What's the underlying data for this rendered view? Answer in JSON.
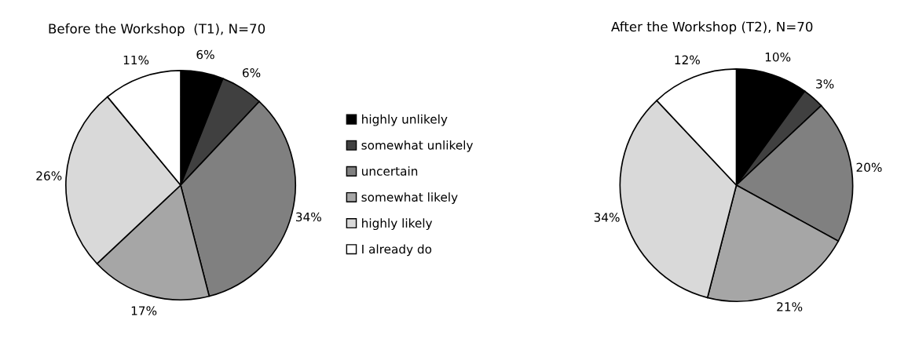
{
  "chart_data": [
    {
      "type": "pie",
      "title": "Before the Workshop  (T1), N=70",
      "categories": [
        "highly unlikely",
        "somewhat unlikely",
        "uncertain",
        "somewhat likely",
        "highly likely",
        "I already do"
      ],
      "values": [
        6,
        6,
        34,
        17,
        26,
        11
      ],
      "value_labels": [
        "6%",
        "6%",
        "34%",
        "17%",
        "26%",
        "11%"
      ],
      "colors": [
        "#000000",
        "#404040",
        "#808080",
        "#a6a6a6",
        "#d9d9d9",
        "#ffffff"
      ],
      "legend": "right"
    },
    {
      "type": "pie",
      "title": "After the Workshop (T2), N=70",
      "categories": [
        null,
        null,
        null,
        null,
        null,
        null
      ],
      "values": [
        10,
        3,
        20,
        21,
        34,
        12
      ],
      "value_labels": [
        "10%",
        "3%",
        "20%",
        "21%",
        "34%",
        "12%"
      ],
      "colors": [
        "#000000",
        "#404040",
        "#808080",
        "#a6a6a6",
        "#d9d9d9",
        "#ffffff"
      ]
    }
  ]
}
